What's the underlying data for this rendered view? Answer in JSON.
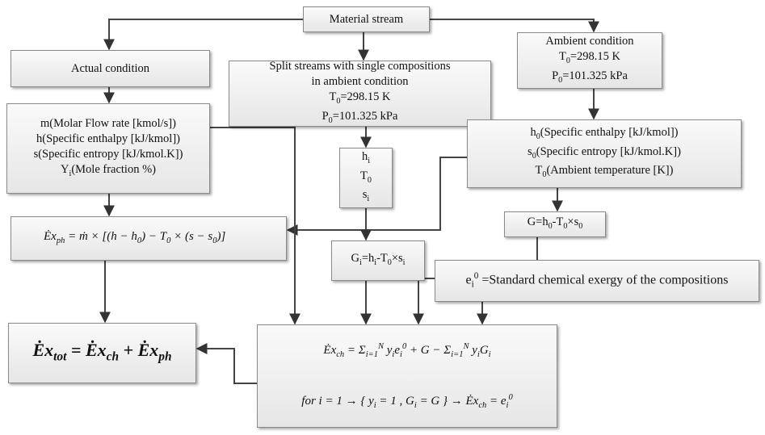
{
  "nodes": [
    {
      "lines": [
        [
          "Material stream"
        ]
      ]
    },
    {
      "lines": [
        [
          "Actual condition"
        ]
      ]
    },
    {
      "lines": [
        [
          "Split streams with single compositions"
        ],
        [
          "in ambient condition"
        ],
        [
          "T",
          {
            "sub": "0"
          },
          "=298.15 K"
        ],
        [
          "P",
          {
            "sub": "0"
          },
          "=101.325 kPa"
        ]
      ]
    },
    {
      "lines": [
        [
          "Ambient condition"
        ],
        [
          "T",
          {
            "sub": "0"
          },
          "=298.15 K"
        ],
        [
          "P",
          {
            "sub": "0"
          },
          "=101.325 kPa"
        ]
      ]
    },
    {
      "lines": [
        [
          "m(Molar Flow rate [kmol/s])"
        ],
        [
          "h(Specific enthalpy [kJ/kmol])"
        ],
        [
          "s(Specific entropy [kJ/kmol.K])"
        ],
        [
          "Y",
          {
            "sub": "i"
          },
          "(Mole fraction %)"
        ]
      ]
    },
    {
      "lines": [
        [
          "h",
          {
            "sub": "i"
          }
        ],
        [
          "T",
          {
            "sub": "0"
          }
        ],
        [
          "s",
          {
            "sub": "i"
          }
        ]
      ]
    },
    {
      "lines": [
        [
          "h",
          {
            "sub": "0"
          },
          "(Specific enthalpy [kJ/kmol])"
        ],
        [
          "s",
          {
            "sub": "0"
          },
          "(Specific  entropy [kJ/kmol.K])"
        ],
        [
          "T",
          {
            "sub": "0"
          },
          "(Ambient temperature [K])"
        ]
      ]
    },
    {
      "lines": [
        [
          "G=h",
          {
            "sub": "0"
          },
          "-T",
          {
            "sub": "0"
          },
          "×s",
          {
            "sub": "0"
          }
        ]
      ]
    },
    {
      "lines": [
        [
          "Ėx",
          {
            "sub": "ph"
          },
          " = ṁ × [(h − h",
          {
            "sub": "0"
          },
          ") − T",
          {
            "sub": "0"
          },
          " × (s − s",
          {
            "sub": "0"
          },
          ")]"
        ]
      ]
    },
    {
      "lines": [
        [
          "G",
          {
            "sub": "i"
          },
          "=h",
          {
            "sub": "i"
          },
          "-T",
          {
            "sub": "0"
          },
          "×s",
          {
            "sub": "i"
          }
        ]
      ]
    },
    {
      "lines": [
        [
          "e",
          {
            "sub": "i"
          },
          {
            "sup": "0"
          },
          " =Standard chemical exergy of the compositions"
        ]
      ]
    },
    {
      "lines": [
        [
          "Ėx",
          {
            "sub": "tot"
          },
          " = Ėx",
          {
            "sub": "ch"
          },
          " + Ėx",
          {
            "sub": "ph"
          }
        ]
      ]
    },
    {
      "lines": [
        [
          "Ėx",
          {
            "sub": "ch"
          },
          " = Σ",
          {
            "sub": "i=1"
          },
          {
            "sup": "N"
          },
          " y",
          {
            "sub": "i"
          },
          "e",
          {
            "sub": "i"
          },
          {
            "sup": "0"
          },
          " + G − Σ",
          {
            "sub": "i=1"
          },
          {
            "sup": "N"
          },
          " y",
          {
            "sub": "i"
          },
          "G",
          {
            "sub": "i"
          }
        ],
        [
          "for  i = 1 → { y",
          {
            "sub": "i"
          },
          " = 1 , G",
          {
            "sub": "i"
          },
          " = G }  → Ėx",
          {
            "sub": "ch"
          },
          " = e",
          {
            "sub": "i"
          },
          {
            "sup": "0"
          }
        ]
      ]
    }
  ]
}
